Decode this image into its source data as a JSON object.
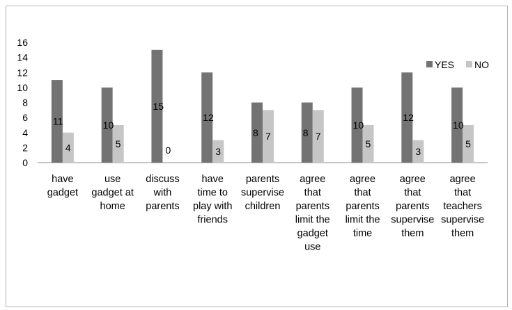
{
  "chart_data": {
    "type": "bar",
    "title": "",
    "xlabel": "",
    "ylabel": "",
    "ylim": [
      0,
      16
    ],
    "yticks": [
      0,
      2,
      4,
      6,
      8,
      10,
      12,
      14,
      16
    ],
    "grid": false,
    "legend_position": "top-right",
    "categories": [
      [
        "have",
        "gadget"
      ],
      [
        "use",
        "gadget at",
        "home"
      ],
      [
        "discuss",
        "with",
        "parents"
      ],
      [
        "have",
        "time to",
        "play with",
        "friends"
      ],
      [
        "parents",
        "supervise",
        "children"
      ],
      [
        "agree",
        "that",
        "parents",
        "limit the",
        "gadget",
        "use"
      ],
      [
        "agree",
        "that",
        "parents",
        "limit the",
        "time"
      ],
      [
        "agree",
        "that",
        "parents",
        "supervise",
        "them"
      ],
      [
        "agree",
        "that",
        "teachers",
        "supervise",
        "them"
      ]
    ],
    "series": [
      {
        "name": "YES",
        "color": "#737373",
        "values": [
          11,
          10,
          15,
          12,
          8,
          8,
          10,
          12,
          10
        ]
      },
      {
        "name": "NO",
        "color": "#c6c6c6",
        "values": [
          4,
          5,
          0,
          3,
          7,
          7,
          5,
          3,
          5
        ]
      }
    ]
  }
}
